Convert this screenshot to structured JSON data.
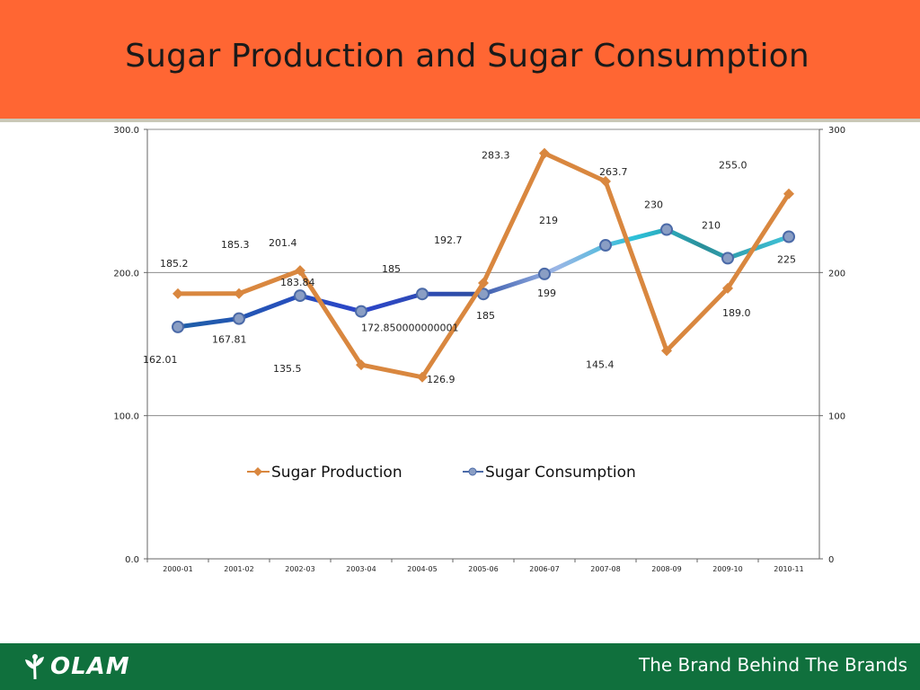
{
  "slide": {
    "title": "Sugar Production and Sugar Consumption",
    "logo_text": "OLAM",
    "tagline": "The Brand Behind The Brands",
    "colors": {
      "title_bar": "#ff6633",
      "footer_bar": "#10703d",
      "production": "#d9873f"
    }
  },
  "chart_data": {
    "type": "line",
    "title": "",
    "categories": [
      "2000-01",
      "2001-02",
      "2002-03",
      "2003-04",
      "2004-05",
      "2005-06",
      "2006-07",
      "2007-08",
      "2008-09",
      "2009-10",
      "2010-11"
    ],
    "y_left_ticks": [
      "0.0",
      "100.0",
      "200.0",
      "300.0"
    ],
    "y_right_ticks": [
      "0",
      "100",
      "200",
      "300"
    ],
    "ylim": [
      0,
      300
    ],
    "grid": true,
    "legend_position": "center",
    "series": [
      {
        "name": "Sugar Production",
        "values": [
          185.2,
          185.3,
          201.4,
          135.5,
          126.9,
          192.7,
          283.3,
          263.7,
          145.4,
          189.0,
          255.0
        ],
        "labels": [
          "185.2",
          "185.3",
          "201.4",
          "135.5",
          "126.9",
          "192.7",
          "283.3",
          "263.7",
          "145.4",
          "189.0",
          "255.0"
        ]
      },
      {
        "name": "Sugar Consumption",
        "values": [
          162.01,
          167.81,
          183.84,
          172.85,
          185,
          185,
          199,
          219,
          230,
          210,
          225
        ],
        "labels": [
          "162.01",
          "167.81",
          "183.84",
          "172.850000000001",
          "185",
          "185",
          "199",
          "219",
          "230",
          "210",
          "225"
        ]
      }
    ]
  }
}
